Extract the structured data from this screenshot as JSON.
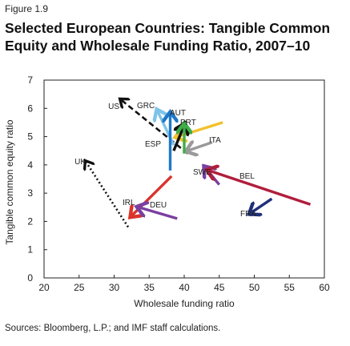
{
  "header": {
    "figure_label": "Figure 1.9",
    "title": "Selected European Countries: Tangible Common Equity and Wholesale Funding Ratio, 2007–10"
  },
  "footer": {
    "source": "Sources: Bloomberg, L.P.; and IMF staff calculations."
  },
  "chart_data": {
    "type": "scatter",
    "xlabel": "Wholesale funding ratio",
    "ylabel": "Tangible common equity ratio",
    "xlim": [
      20,
      60
    ],
    "ylim": [
      0,
      7
    ],
    "x_ticks": [
      "20",
      "25",
      "30",
      "35",
      "40",
      "45",
      "50",
      "55",
      "60"
    ],
    "y_ticks": [
      "0",
      "1",
      "2",
      "3",
      "4",
      "5",
      "6",
      "7"
    ],
    "grid": false,
    "series": [
      {
        "name": "US",
        "x0": 40.5,
        "y0": 4.4,
        "x1": 31.0,
        "y1": 6.3,
        "color": "#111111",
        "style": "dashed"
      },
      {
        "name": "UK",
        "x0": 32.0,
        "y0": 1.8,
        "x1": 26.0,
        "y1": 4.1,
        "color": "#111111",
        "style": "dotted"
      },
      {
        "name": "GRC",
        "x0": 38.5,
        "y0": 4.7,
        "x1": 36.2,
        "y1": 5.9,
        "color": "#7fc4e8",
        "style": "solid"
      },
      {
        "name": "AUT",
        "x0": 38.0,
        "y0": 3.8,
        "x1": 38.0,
        "y1": 5.8,
        "color": "#1f78c8",
        "style": "solid"
      },
      {
        "name": "PRT",
        "x0": 45.5,
        "y0": 5.5,
        "x1": 39.0,
        "y1": 5.0,
        "color": "#f2c12e",
        "style": "solid"
      },
      {
        "name": "ESP",
        "x0": 38.5,
        "y0": 4.5,
        "x1": 40.0,
        "y1": 5.4,
        "color": "#111111",
        "style": "solid"
      },
      {
        "name": "ITA",
        "x0": 44.0,
        "y0": 4.8,
        "x1": 40.5,
        "y1": 4.5,
        "color": "#9a9a9a",
        "style": "solid"
      },
      {
        "name": "SWE",
        "x0": 45.0,
        "y0": 3.3,
        "x1": 43.0,
        "y1": 3.9,
        "color": "#7b3fa0",
        "style": "solid"
      },
      {
        "name": "BEL",
        "x0": 58.0,
        "y0": 2.6,
        "x1": 43.5,
        "y1": 3.8,
        "color": "#b01e3c",
        "style": "solid"
      },
      {
        "name": "FRA",
        "x0": 52.5,
        "y0": 2.8,
        "x1": 49.5,
        "y1": 2.3,
        "color": "#1f2f7a",
        "style": "solid"
      },
      {
        "name": "IRL",
        "x0": 38.2,
        "y0": 3.6,
        "x1": 32.5,
        "y1": 2.2,
        "color": "#d9342b",
        "style": "solid"
      },
      {
        "name": "DEU",
        "x0": 39.0,
        "y0": 2.1,
        "x1": 33.5,
        "y1": 2.5,
        "color": "#7b3fa0",
        "style": "solid"
      },
      {
        "name": "",
        "x0": 40.0,
        "y0": 4.4,
        "x1": 40.0,
        "y1": 5.4,
        "color": "#3fae49",
        "style": "solid"
      }
    ]
  }
}
